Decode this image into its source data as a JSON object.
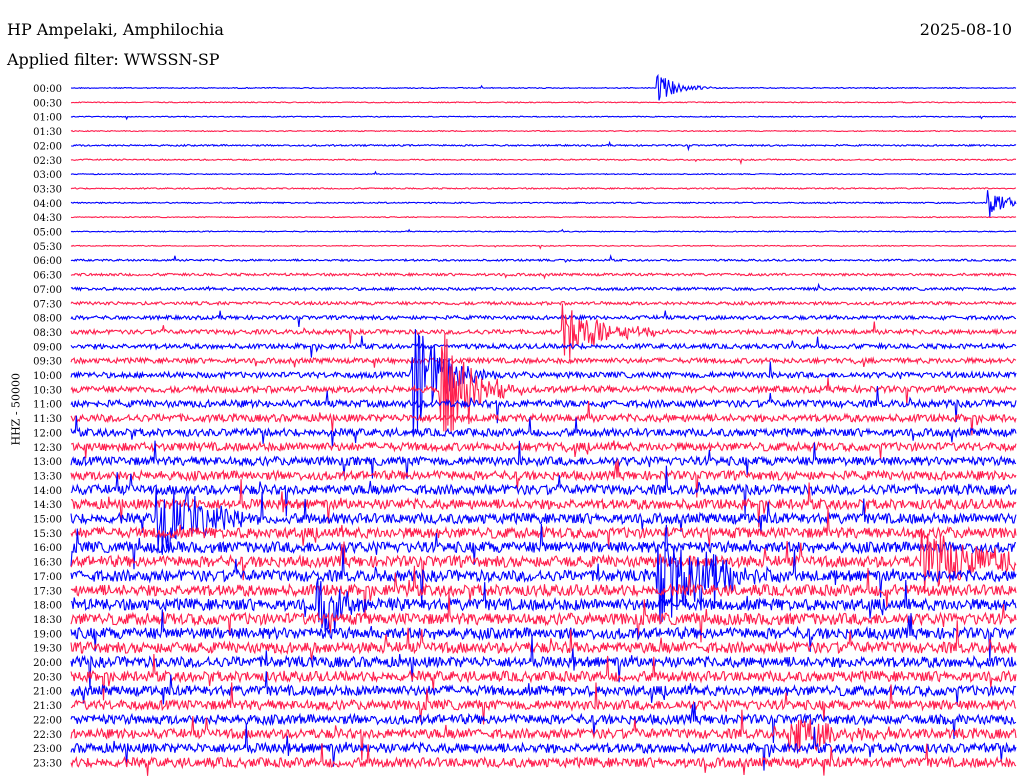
{
  "header": {
    "station": "HP Ampelaki, Amphilochia",
    "date": "2025-08-10",
    "filter": "Applied filter: WWSSN-SP"
  },
  "chart_data": {
    "type": "line",
    "title": "HP Ampelaki, Amphilochia",
    "ylabel": "HHZ - 50000",
    "trace_colors": [
      "#0000ff",
      "#ff1e4d"
    ],
    "trace_labels": [
      "00:00",
      "00:30",
      "01:00",
      "01:30",
      "02:00",
      "02:30",
      "03:00",
      "03:30",
      "04:00",
      "04:30",
      "05:00",
      "05:30",
      "06:00",
      "06:30",
      "07:00",
      "07:30",
      "08:00",
      "08:30",
      "09:00",
      "09:30",
      "10:00",
      "10:30",
      "11:00",
      "11:30",
      "12:00",
      "12:30",
      "13:00",
      "13:30",
      "14:00",
      "14:30",
      "15:00",
      "15:30",
      "16:00",
      "16:30",
      "17:00",
      "17:30",
      "18:00",
      "18:30",
      "19:00",
      "19:30",
      "20:00",
      "20:30",
      "21:00",
      "21:30",
      "22:00",
      "22:30",
      "23:00",
      "23:30"
    ],
    "noise_level": [
      0.3,
      0.3,
      0.3,
      0.3,
      0.5,
      0.4,
      0.3,
      0.4,
      0.4,
      0.3,
      0.3,
      0.3,
      0.6,
      0.8,
      0.9,
      1.0,
      1.2,
      1.4,
      1.5,
      1.6,
      1.8,
      2.0,
      2.2,
      2.3,
      2.4,
      2.6,
      2.7,
      2.8,
      3.0,
      3.1,
      3.2,
      3.3,
      3.4,
      3.5,
      3.5,
      3.5,
      3.6,
      3.6,
      3.5,
      3.4,
      3.3,
      3.2,
      3.1,
      3.0,
      3.0,
      3.0,
      3.0,
      3.0
    ],
    "events": [
      {
        "trace": 0,
        "t": 0.62,
        "amp": 16,
        "dur": 0.02
      },
      {
        "trace": 8,
        "t": 0.97,
        "amp": 20,
        "dur": 0.015
      },
      {
        "trace": 17,
        "t": 0.52,
        "amp": 30,
        "dur": 0.04
      },
      {
        "trace": 20,
        "t": 0.36,
        "amp": 70,
        "dur": 0.03
      },
      {
        "trace": 21,
        "t": 0.39,
        "amp": 70,
        "dur": 0.03
      },
      {
        "trace": 30,
        "t": 0.09,
        "amp": 50,
        "dur": 0.04
      },
      {
        "trace": 33,
        "t": 0.9,
        "amp": 30,
        "dur": 0.08
      },
      {
        "trace": 34,
        "t": 0.62,
        "amp": 60,
        "dur": 0.05
      },
      {
        "trace": 36,
        "t": 0.26,
        "amp": 30,
        "dur": 0.03
      },
      {
        "trace": 45,
        "t": 0.76,
        "amp": 25,
        "dur": 0.05
      }
    ]
  }
}
